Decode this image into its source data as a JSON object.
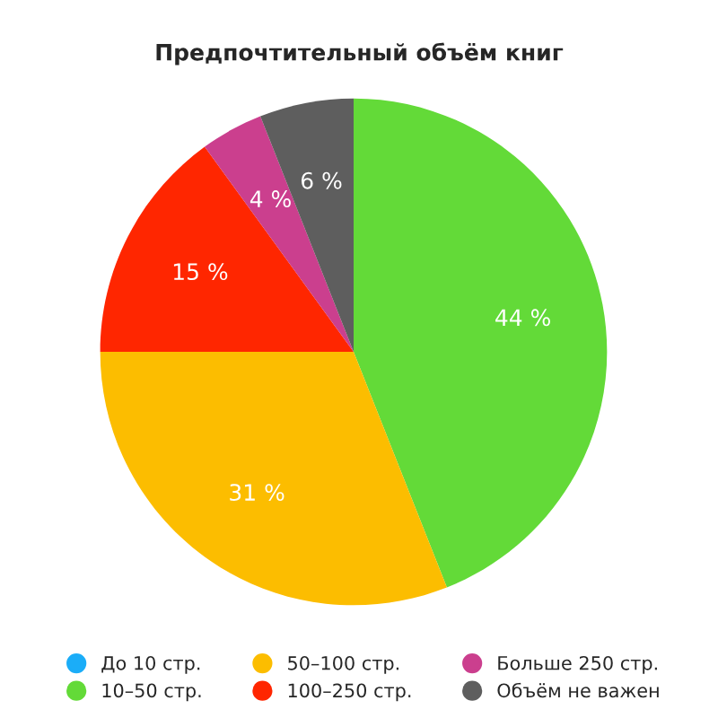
{
  "chart_data": {
    "type": "pie",
    "title": "Предпочтительный объём книг",
    "categories": [
      "До 10 стр.",
      "10–50 стр.",
      "50–100 стр.",
      "100–250 стр.",
      "Больше 250 стр.",
      "Объём не важен"
    ],
    "values": [
      0,
      44,
      31,
      15,
      4,
      6
    ],
    "colors": [
      "#1badf8",
      "#63da38",
      "#fcbd00",
      "#ff2600",
      "#cb3f8e",
      "#5e5e5e"
    ],
    "value_labels": [
      null,
      "44 %",
      "31 %",
      "15 %",
      "4 %",
      "6 %"
    ],
    "legend": "bottom"
  }
}
